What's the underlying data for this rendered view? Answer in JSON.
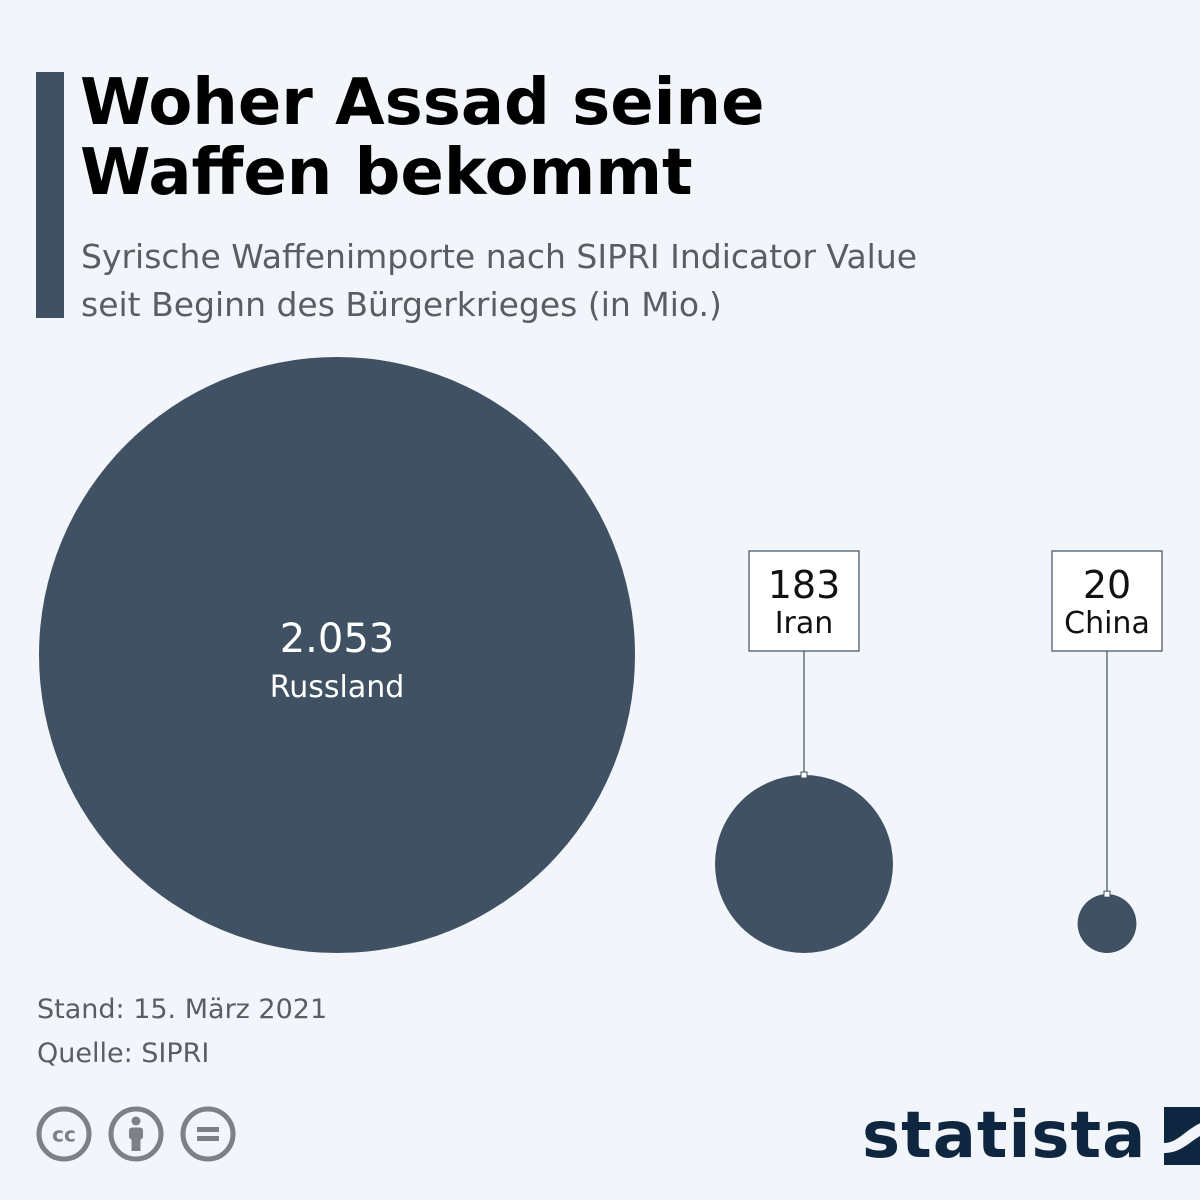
{
  "header": {
    "title_line1": "Woher Assad seine",
    "title_line2": "Waffen bekommt",
    "subtitle_line1": "Syrische Waffenimporte nach SIPRI Indicator Value",
    "subtitle_line2": "seit Beginn des Bürgerkrieges (in Mio.)"
  },
  "chart_data": {
    "type": "bubble",
    "title": "Woher Assad seine Waffen bekommt",
    "subtitle": "Syrische Waffenimporte nach SIPRI Indicator Value seit Beginn des Bürgerkrieges (in Mio.)",
    "categories": [
      "Russland",
      "Iran",
      "China"
    ],
    "values": [
      2053,
      183,
      20
    ],
    "value_labels": [
      "2.053",
      "183",
      "20"
    ],
    "value_unit": "Mio.",
    "color": "#3f5163",
    "label_box_border": "#3f5163"
  },
  "footer": {
    "stand": "Stand: 15. März 2021",
    "quelle": "Quelle: SIPRI"
  },
  "license_icons": [
    "cc-icon",
    "attribution-icon",
    "no-derivatives-icon"
  ],
  "brand": {
    "name": "statista",
    "color": "#0f2640"
  },
  "colors": {
    "background": "#f2f6fa",
    "accent": "#3f5163",
    "text_secondary": "#5a5e63"
  }
}
